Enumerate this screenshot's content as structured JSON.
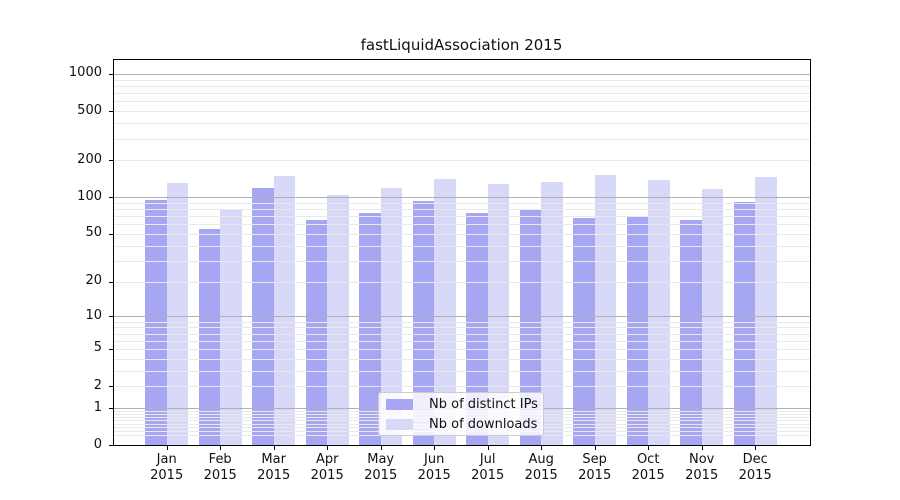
{
  "title": "fastLiquidAssociation 2015",
  "chart_data": {
    "type": "bar",
    "title": "fastLiquidAssociation 2015",
    "x_year": "2015",
    "months": [
      "Jan",
      "Feb",
      "Mar",
      "Apr",
      "May",
      "Jun",
      "Jul",
      "Aug",
      "Sep",
      "Oct",
      "Nov",
      "Dec"
    ],
    "categories": [
      "Jan 2015",
      "Feb 2015",
      "Mar 2015",
      "Apr 2015",
      "May 2015",
      "Jun 2015",
      "Jul 2015",
      "Aug 2015",
      "Sep 2015",
      "Oct 2015",
      "Nov 2015",
      "Dec 2015"
    ],
    "series": [
      {
        "name": "Nb of distinct IPs",
        "color": "#a6a6f3",
        "values": [
          95,
          55,
          120,
          65,
          75,
          94,
          75,
          80,
          67,
          70,
          65,
          92
        ]
      },
      {
        "name": "Nb of downloads",
        "color": "#d8d8f9",
        "values": [
          130,
          80,
          150,
          104,
          120,
          140,
          128,
          134,
          152,
          138,
          116,
          145
        ]
      }
    ],
    "yscale": "log1p",
    "ytick_values": [
      0,
      1,
      2,
      5,
      10,
      20,
      50,
      100,
      200,
      500,
      1000
    ],
    "ytick_labels": [
      "0",
      "1",
      "2",
      "5",
      "10",
      "20",
      "50",
      "100",
      "200",
      "500",
      "1000"
    ],
    "ylim": [
      0,
      1300
    ],
    "grid": "both",
    "legend_position": "lower-center"
  },
  "colors": {
    "bar_dark": "#a6a6f3",
    "bar_light": "#d8d8f9",
    "grid_major": "#b0b0b0",
    "grid_minor": "#e9e9e9",
    "spine": "#000000",
    "background": "#ffffff",
    "text": "#111111"
  }
}
